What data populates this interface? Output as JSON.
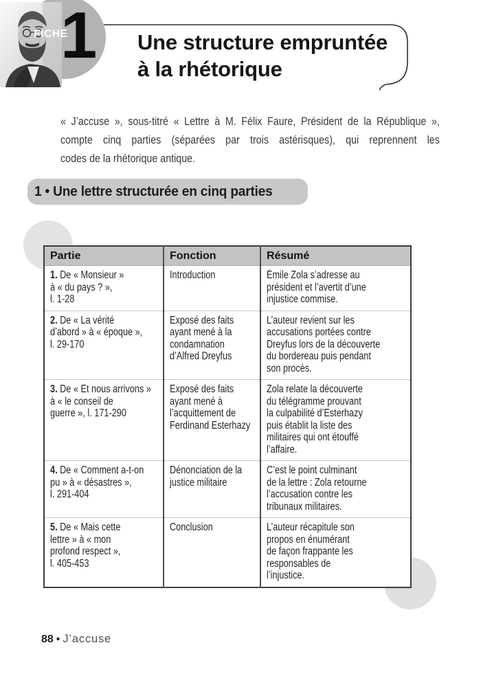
{
  "header": {
    "fiche_label": "FICHE",
    "fiche_number": "1",
    "title_line1": "Une structure empruntée",
    "title_line2": "à la rhétorique",
    "portrait_icon": "zola-portrait"
  },
  "intro": {
    "lines": [
      "« J’accuse », sous-titré « Lettre à M. Félix Faure, Président de la République »,",
      "compte cinq parties (séparées par trois astérisques), qui reprennent les",
      "codes de la rhétorique antique."
    ]
  },
  "section_heading": "1 • Une lettre structurée en cinq parties",
  "table": {
    "columns": [
      "Partie",
      "Fonction",
      "Résumé"
    ],
    "rows": [
      {
        "num": "1.",
        "partie": "De « Monsieur »\nà « du pays ? »,\nl. 1-28",
        "fonction": "Introduction",
        "resume": "Émile Zola s’adresse au\nprésident et l’avertit d’une\ninjustice commise."
      },
      {
        "num": "2.",
        "partie": "De « La vérité\nd’abord » à « époque »,\nl. 29-170",
        "fonction": "Exposé des faits\nayant mené à la\ncondamnation\nd’Alfred Dreyfus",
        "resume": "L’auteur revient sur les\naccusations portées contre\nDreyfus lors de la découverte\ndu bordereau puis pendant\nson procès."
      },
      {
        "num": "3.",
        "partie": "De « Et nous arrivons »\nà « le conseil de\nguerre », l. 171-290",
        "fonction": "Exposé des faits\nayant mené à\nl’acquittement de\nFerdinand Esterhazy",
        "resume": "Zola relate la découverte\ndu télégramme prouvant\nla culpabilité d’Esterhazy\npuis établit la liste des\nmilitaires qui ont étouffé\nl’affaire."
      },
      {
        "num": "4.",
        "partie": "De « Comment a-t-on\npu » à « désastres »,\nl. 291-404",
        "fonction": "Dénonciation de la\njustice militaire",
        "resume": "C’est le point culminant\nde la lettre : Zola retourne\nl’accusation contre les\ntribunaux militaires."
      },
      {
        "num": "5.",
        "partie": "De « Mais cette\nlettre » à « mon\nprofond respect »,\nl. 405-453",
        "fonction": "Conclusion",
        "resume": "L’auteur récapitule son\npropos en énumérant\nde façon frappante les\nresponsables de\nl’injustice."
      }
    ]
  },
  "footer": {
    "page_number": "88",
    "separator": "•",
    "book_title": "J’accuse"
  },
  "colors": {
    "circle_gray": "#b3b3b3",
    "pill_gray": "#c8c8c8",
    "table_header_gray": "#c3c3c3",
    "decor_circle_gray": "#e3e3e3",
    "border_dark": "#3d3d3d"
  }
}
